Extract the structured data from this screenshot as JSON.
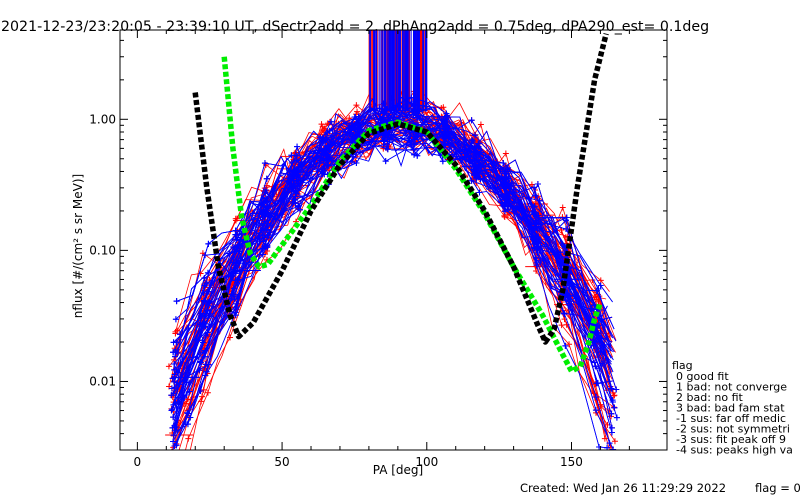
{
  "chart_data": {
    "type": "scatter",
    "title": "2021-12-23/23:20:05 - 23:39:10 UT, dSectr2add = 2, dPhAng2add = 0.75deg, dPA290_est=    0.1deg",
    "xlabel": "PA [deg]",
    "ylabel": "nflux [#/(cm² s sr MeV)]",
    "xlim": [
      -6,
      183
    ],
    "ylim": [
      0.003,
      4.8
    ],
    "yscale": "log",
    "x_ticks": [
      0,
      50,
      100,
      150
    ],
    "x_tick_labels": [
      "0",
      "50",
      "100",
      "150"
    ],
    "y_ticks": [
      0.01,
      0.1,
      1.0
    ],
    "y_tick_labels": [
      "0.01",
      "0.10",
      "1.00"
    ],
    "grid": false,
    "series": [
      {
        "color": "#ff0000",
        "style": "crosses joined by lines",
        "profiles": 60
      },
      {
        "color": "#0000ff",
        "style": "crosses joined by lines",
        "profiles": 90
      },
      {
        "color": "#00ee00",
        "style": "thick dashed fit curve",
        "x": [
          30,
          33,
          36,
          39,
          42,
          45,
          50,
          60,
          70,
          80,
          90,
          100,
          110,
          120,
          130,
          140,
          147,
          150,
          153,
          156,
          158,
          160
        ],
        "y": [
          3.0,
          0.6,
          0.18,
          0.095,
          0.075,
          0.078,
          0.11,
          0.22,
          0.48,
          0.82,
          0.95,
          0.8,
          0.42,
          0.19,
          0.075,
          0.032,
          0.016,
          0.012,
          0.013,
          0.02,
          0.03,
          0.04
        ]
      },
      {
        "color": "#000000",
        "style": "thick dashed fit curve",
        "x": [
          20,
          24,
          28,
          32,
          35,
          40,
          50,
          60,
          70,
          80,
          90,
          100,
          110,
          120,
          130,
          138,
          141,
          144,
          147,
          152,
          158,
          162
        ],
        "y": [
          1.6,
          0.3,
          0.075,
          0.032,
          0.022,
          0.028,
          0.07,
          0.2,
          0.45,
          0.78,
          0.92,
          0.8,
          0.45,
          0.2,
          0.075,
          0.028,
          0.02,
          0.025,
          0.05,
          0.3,
          2.0,
          4.5
        ]
      }
    ],
    "legend": {
      "placement": "right",
      "title": "flag",
      "entries": [
        "0 good fit",
        "1 bad: not converge",
        "2 bad: no fit",
        "3 bad: bad fam stat",
        "-1 sus: far off medic",
        "-2 sus: not symmetri",
        "-3 sus: fit peak off 9",
        "-4 sus: peaks high va"
      ]
    },
    "footer": "Created: Wed Jan 26 11:29:29 2022",
    "footer_flag": "flag = 0"
  }
}
